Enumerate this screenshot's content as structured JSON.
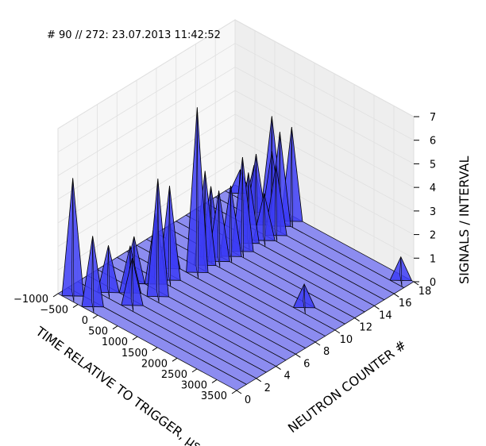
{
  "chart_data": {
    "type": "surface3d",
    "title": "# 90 // 272: 23.07.2013 11:42:52",
    "xlabel": "TIME RELATIVE TO TRIGGER, μs",
    "ylabel": "NEUTRON COUNTER #",
    "zlabel": "SIGNALS / INTERVAL",
    "xlim": [
      -1000,
      3500
    ],
    "ylim": [
      0,
      18
    ],
    "zlim": [
      0,
      7
    ],
    "x_ticks": [
      "−1000",
      "−500",
      "0",
      "500",
      "1000",
      "1500",
      "2000",
      "2500",
      "3000",
      "3500"
    ],
    "y_ticks": [
      "0",
      "2",
      "4",
      "6",
      "8",
      "10",
      "12",
      "14",
      "16",
      "18"
    ],
    "z_ticks": [
      "0",
      "1",
      "2",
      "3",
      "4",
      "5",
      "6",
      "7"
    ],
    "grid": true,
    "surface_color": "#0000ff",
    "rows": 18,
    "peaks": [
      {
        "x": -750,
        "y": 0.5,
        "z": 5
      },
      {
        "x": -750,
        "y": 17.5,
        "z": 1
      },
      {
        "x": -350,
        "y": 2.5,
        "z": 2
      },
      {
        "x": -250,
        "y": 0.5,
        "z": 3
      },
      {
        "x": -200,
        "y": 4.5,
        "z": 2
      },
      {
        "x": -50,
        "y": 3.5,
        "z": 2
      },
      {
        "x": -50,
        "y": 7.5,
        "z": 2
      },
      {
        "x": 100,
        "y": 5.5,
        "z": 3
      },
      {
        "x": 200,
        "y": 6.5,
        "z": 4
      },
      {
        "x": 250,
        "y": 2.5,
        "z": 2
      },
      {
        "x": 250,
        "y": 10.5,
        "z": 3
      },
      {
        "x": 350,
        "y": 9.5,
        "z": 4
      },
      {
        "x": 400,
        "y": 4.5,
        "z": 5
      },
      {
        "x": 450,
        "y": 13.5,
        "z": 3
      },
      {
        "x": 500,
        "y": 11.5,
        "z": 3
      },
      {
        "x": 550,
        "y": 12.5,
        "z": 4
      },
      {
        "x": 600,
        "y": 14.5,
        "z": 2
      },
      {
        "x": 650,
        "y": 15.5,
        "z": 3
      },
      {
        "x": 300,
        "y": 16.5,
        "z": 3
      },
      {
        "x": 50,
        "y": 17.5,
        "z": 4
      },
      {
        "x": -150,
        "y": 16.5,
        "z": 2
      },
      {
        "x": 150,
        "y": 15.5,
        "z": 3
      },
      {
        "x": 400,
        "y": 8.5,
        "z": 7
      },
      {
        "x": 450,
        "y": 10.5,
        "z": 3
      },
      {
        "x": 500,
        "y": 16.5,
        "z": 4
      },
      {
        "x": 550,
        "y": 17.5,
        "z": 4
      },
      {
        "x": 2600,
        "y": 10.5,
        "z": 1
      },
      {
        "x": 3300,
        "y": 17.5,
        "z": 1
      }
    ]
  }
}
